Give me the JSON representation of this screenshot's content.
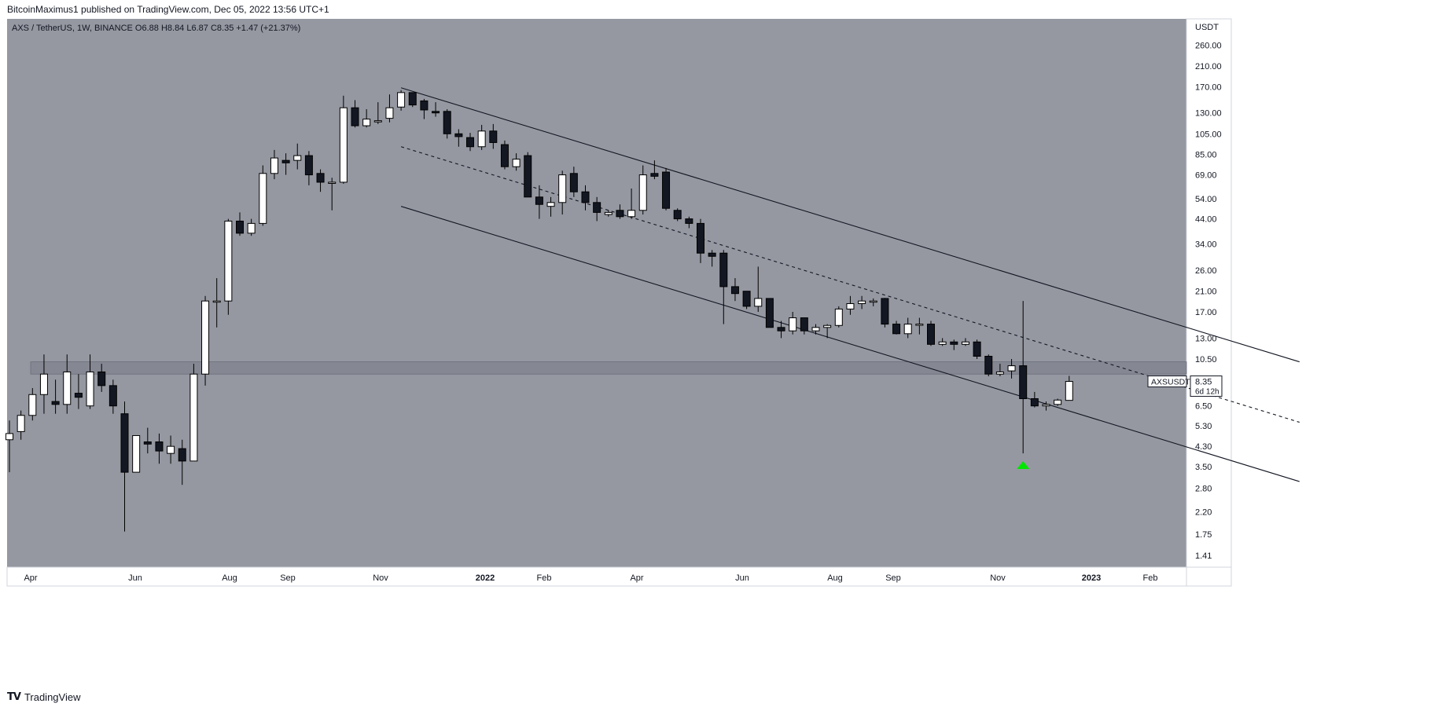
{
  "header": {
    "text": "BitcoinMaximus1 published on TradingView.com, Dec 05, 2022 13:56 UTC+1"
  },
  "legend": {
    "symbol": "AXS / TetherUS, 1W, BINANCE",
    "o_label": "O",
    "o_value": "6.88",
    "h_label": "H",
    "h_value": "8.84",
    "l_label": "L",
    "l_value": "6.87",
    "c_label": "C",
    "c_value": "8.35",
    "change": "+1.47 (+21.37%)"
  },
  "footer": {
    "logo": "TV",
    "brand": "TradingView"
  },
  "colors": {
    "background": "#9598a1",
    "bull_body": "#ffffff",
    "bear_body": "#131722",
    "wick": "#000000",
    "zone": "#787b86",
    "marker": "#00e600"
  },
  "chart_data": {
    "type": "candlestick",
    "title": "AXS / TetherUS, 1W, BINANCE",
    "yscale": "log",
    "ylim": [
      1.25,
      340
    ],
    "y_unit": "USDT",
    "y_ticks": [
      "260.00",
      "210.00",
      "170.00",
      "130.00",
      "105.00",
      "85.00",
      "69.00",
      "54.00",
      "44.00",
      "34.00",
      "26.00",
      "21.00",
      "17.00",
      "13.00",
      "10.50",
      "6.50",
      "5.30",
      "4.30",
      "3.50",
      "2.80",
      "2.20",
      "1.75",
      "1.41"
    ],
    "x_ticks": [
      "Apr",
      "Jun",
      "Aug",
      "Sep",
      "Nov",
      "2022",
      "Feb",
      "Apr",
      "Jun",
      "Aug",
      "Sep",
      "Nov",
      "2023",
      "Feb"
    ],
    "last_price": {
      "label": "AXSUSDT",
      "value": "8.35",
      "countdown": "6d 12h"
    },
    "candles": [
      {
        "o": 4.6,
        "h": 5.6,
        "l": 3.3,
        "c": 4.9
      },
      {
        "o": 5.0,
        "h": 6.2,
        "l": 4.6,
        "c": 5.9
      },
      {
        "o": 5.9,
        "h": 7.8,
        "l": 5.6,
        "c": 7.3
      },
      {
        "o": 7.3,
        "h": 11.0,
        "l": 6.0,
        "c": 9.0
      },
      {
        "o": 6.8,
        "h": 8.5,
        "l": 6.0,
        "c": 6.6
      },
      {
        "o": 6.6,
        "h": 11.0,
        "l": 6.0,
        "c": 9.2
      },
      {
        "o": 7.4,
        "h": 9.0,
        "l": 6.3,
        "c": 7.1
      },
      {
        "o": 6.5,
        "h": 11.0,
        "l": 6.3,
        "c": 9.2
      },
      {
        "o": 9.2,
        "h": 10.0,
        "l": 7.5,
        "c": 8.0
      },
      {
        "o": 8.0,
        "h": 8.5,
        "l": 6.0,
        "c": 6.5
      },
      {
        "o": 6.0,
        "h": 6.8,
        "l": 1.8,
        "c": 3.3
      },
      {
        "o": 3.3,
        "h": 4.8,
        "l": 3.3,
        "c": 4.8
      },
      {
        "o": 4.5,
        "h": 5.2,
        "l": 4.0,
        "c": 4.4
      },
      {
        "o": 4.5,
        "h": 4.9,
        "l": 3.6,
        "c": 4.1
      },
      {
        "o": 4.0,
        "h": 4.8,
        "l": 3.6,
        "c": 4.3
      },
      {
        "o": 4.2,
        "h": 4.6,
        "l": 2.9,
        "c": 3.7
      },
      {
        "o": 3.7,
        "h": 10.0,
        "l": 3.7,
        "c": 9.0
      },
      {
        "o": 9.0,
        "h": 20.0,
        "l": 8.0,
        "c": 19.0
      },
      {
        "o": 19.0,
        "h": 24.0,
        "l": 14.5,
        "c": 19.0
      },
      {
        "o": 19.0,
        "h": 44.0,
        "l": 16.5,
        "c": 43.0
      },
      {
        "o": 43.0,
        "h": 47.0,
        "l": 37.0,
        "c": 38.0
      },
      {
        "o": 38.0,
        "h": 44.0,
        "l": 37.0,
        "c": 42.0
      },
      {
        "o": 42.0,
        "h": 76.0,
        "l": 41.0,
        "c": 70.0
      },
      {
        "o": 70.0,
        "h": 89.0,
        "l": 66.0,
        "c": 82.0
      },
      {
        "o": 80.0,
        "h": 86.0,
        "l": 69.0,
        "c": 78.0
      },
      {
        "o": 80.0,
        "h": 95.0,
        "l": 73.0,
        "c": 84.0
      },
      {
        "o": 84.0,
        "h": 88.0,
        "l": 62.0,
        "c": 69.0
      },
      {
        "o": 70.0,
        "h": 73.0,
        "l": 58.0,
        "c": 64.0
      },
      {
        "o": 64.0,
        "h": 67.0,
        "l": 48.0,
        "c": 64.0
      },
      {
        "o": 64.0,
        "h": 155.0,
        "l": 63.0,
        "c": 137.0
      },
      {
        "o": 137.0,
        "h": 148.0,
        "l": 112.0,
        "c": 114.0
      },
      {
        "o": 114.0,
        "h": 135.0,
        "l": 112.0,
        "c": 122.0
      },
      {
        "o": 120.0,
        "h": 145.0,
        "l": 116.0,
        "c": 120.0
      },
      {
        "o": 123.0,
        "h": 157.0,
        "l": 118.0,
        "c": 137.0
      },
      {
        "o": 138.0,
        "h": 164.0,
        "l": 133.0,
        "c": 160.0
      },
      {
        "o": 160.0,
        "h": 160.0,
        "l": 138.0,
        "c": 141.0
      },
      {
        "o": 147.0,
        "h": 150.0,
        "l": 122.0,
        "c": 134.0
      },
      {
        "o": 132.0,
        "h": 145.0,
        "l": 125.0,
        "c": 130.0
      },
      {
        "o": 132.0,
        "h": 135.0,
        "l": 100.0,
        "c": 105.0
      },
      {
        "o": 105.0,
        "h": 110.0,
        "l": 92.0,
        "c": 102.0
      },
      {
        "o": 101.0,
        "h": 106.0,
        "l": 88.0,
        "c": 92.0
      },
      {
        "o": 92.0,
        "h": 115.0,
        "l": 89.0,
        "c": 108.0
      },
      {
        "o": 108.0,
        "h": 116.0,
        "l": 90.0,
        "c": 96.0
      },
      {
        "o": 94.0,
        "h": 98.0,
        "l": 73.0,
        "c": 75.0
      },
      {
        "o": 75.0,
        "h": 86.0,
        "l": 72.0,
        "c": 81.0
      },
      {
        "o": 84.0,
        "h": 87.0,
        "l": 55.0,
        "c": 55.0
      },
      {
        "o": 55.0,
        "h": 62.0,
        "l": 44.0,
        "c": 51.0
      },
      {
        "o": 50.0,
        "h": 55.0,
        "l": 45.0,
        "c": 52.0
      },
      {
        "o": 52.0,
        "h": 72.0,
        "l": 46.0,
        "c": 69.0
      },
      {
        "o": 70.0,
        "h": 75.0,
        "l": 55.0,
        "c": 58.0
      },
      {
        "o": 58.0,
        "h": 62.0,
        "l": 48.0,
        "c": 52.0
      },
      {
        "o": 52.0,
        "h": 55.0,
        "l": 43.0,
        "c": 47.0
      },
      {
        "o": 46.0,
        "h": 48.0,
        "l": 45.0,
        "c": 47.0
      },
      {
        "o": 48.0,
        "h": 51.0,
        "l": 44.0,
        "c": 45.0
      },
      {
        "o": 45.0,
        "h": 60.0,
        "l": 44.0,
        "c": 48.0
      },
      {
        "o": 48.0,
        "h": 76.0,
        "l": 46.0,
        "c": 69.0
      },
      {
        "o": 70.0,
        "h": 80.0,
        "l": 66.0,
        "c": 68.0
      },
      {
        "o": 71.0,
        "h": 74.0,
        "l": 48.0,
        "c": 49.0
      },
      {
        "o": 48.0,
        "h": 49.0,
        "l": 43.0,
        "c": 44.0
      },
      {
        "o": 44.0,
        "h": 45.0,
        "l": 40.0,
        "c": 42.0
      },
      {
        "o": 42.0,
        "h": 44.0,
        "l": 28.0,
        "c": 31.0
      },
      {
        "o": 31.0,
        "h": 32.0,
        "l": 27.0,
        "c": 30.0
      },
      {
        "o": 31.0,
        "h": 32.0,
        "l": 15.0,
        "c": 22.0
      },
      {
        "o": 22.0,
        "h": 24.0,
        "l": 19.0,
        "c": 20.5
      },
      {
        "o": 21.0,
        "h": 21.0,
        "l": 17.5,
        "c": 18.0
      },
      {
        "o": 18.0,
        "h": 27.0,
        "l": 17.0,
        "c": 19.5
      },
      {
        "o": 19.5,
        "h": 19.5,
        "l": 15.0,
        "c": 14.5
      },
      {
        "o": 14.5,
        "h": 15.5,
        "l": 13.0,
        "c": 14.0
      },
      {
        "o": 14.0,
        "h": 17.0,
        "l": 13.5,
        "c": 16.0
      },
      {
        "o": 16.0,
        "h": 16.0,
        "l": 13.5,
        "c": 14.0
      },
      {
        "o": 14.0,
        "h": 15.0,
        "l": 13.5,
        "c": 14.5
      },
      {
        "o": 14.5,
        "h": 15.0,
        "l": 13.0,
        "c": 14.8
      },
      {
        "o": 14.8,
        "h": 18.0,
        "l": 14.5,
        "c": 17.5
      },
      {
        "o": 17.5,
        "h": 20.0,
        "l": 16.5,
        "c": 18.5
      },
      {
        "o": 18.5,
        "h": 20.0,
        "l": 17.5,
        "c": 19.0
      },
      {
        "o": 19.0,
        "h": 19.5,
        "l": 18.0,
        "c": 19.0
      },
      {
        "o": 19.5,
        "h": 19.6,
        "l": 14.5,
        "c": 15.0
      },
      {
        "o": 15.0,
        "h": 15.5,
        "l": 13.5,
        "c": 13.6
      },
      {
        "o": 13.6,
        "h": 16.0,
        "l": 13.0,
        "c": 15.0
      },
      {
        "o": 15.0,
        "h": 16.0,
        "l": 13.5,
        "c": 15.0
      },
      {
        "o": 15.0,
        "h": 15.5,
        "l": 12.0,
        "c": 12.2
      },
      {
        "o": 12.2,
        "h": 13.0,
        "l": 12.0,
        "c": 12.5
      },
      {
        "o": 12.5,
        "h": 12.8,
        "l": 11.5,
        "c": 12.2
      },
      {
        "o": 12.2,
        "h": 13.0,
        "l": 12.0,
        "c": 12.5
      },
      {
        "o": 12.5,
        "h": 12.8,
        "l": 10.5,
        "c": 10.8
      },
      {
        "o": 10.8,
        "h": 11.0,
        "l": 8.8,
        "c": 9.0
      },
      {
        "o": 9.0,
        "h": 10.0,
        "l": 8.8,
        "c": 9.2
      },
      {
        "o": 9.3,
        "h": 10.5,
        "l": 8.6,
        "c": 9.8
      },
      {
        "o": 9.8,
        "h": 19.0,
        "l": 4.0,
        "c": 7.0
      },
      {
        "o": 7.0,
        "h": 7.5,
        "l": 6.4,
        "c": 6.5
      },
      {
        "o": 6.5,
        "h": 6.8,
        "l": 6.2,
        "c": 6.6
      },
      {
        "o": 6.6,
        "h": 7.0,
        "l": 6.5,
        "c": 6.9
      },
      {
        "o": 6.88,
        "h": 8.84,
        "l": 6.87,
        "c": 8.35
      }
    ],
    "channel": {
      "upper": [
        {
          "i": 34,
          "price": 168
        },
        {
          "i": 112,
          "price": 10.2
        }
      ],
      "middle": [
        {
          "i": 34,
          "price": 92
        },
        {
          "i": 112,
          "price": 5.5
        }
      ],
      "lower": [
        {
          "i": 34,
          "price": 50
        },
        {
          "i": 112,
          "price": 3.0
        }
      ]
    },
    "zone": {
      "top": 10.2,
      "bottom": 9.0
    },
    "marker": {
      "i": 88,
      "price": 3.55
    }
  }
}
